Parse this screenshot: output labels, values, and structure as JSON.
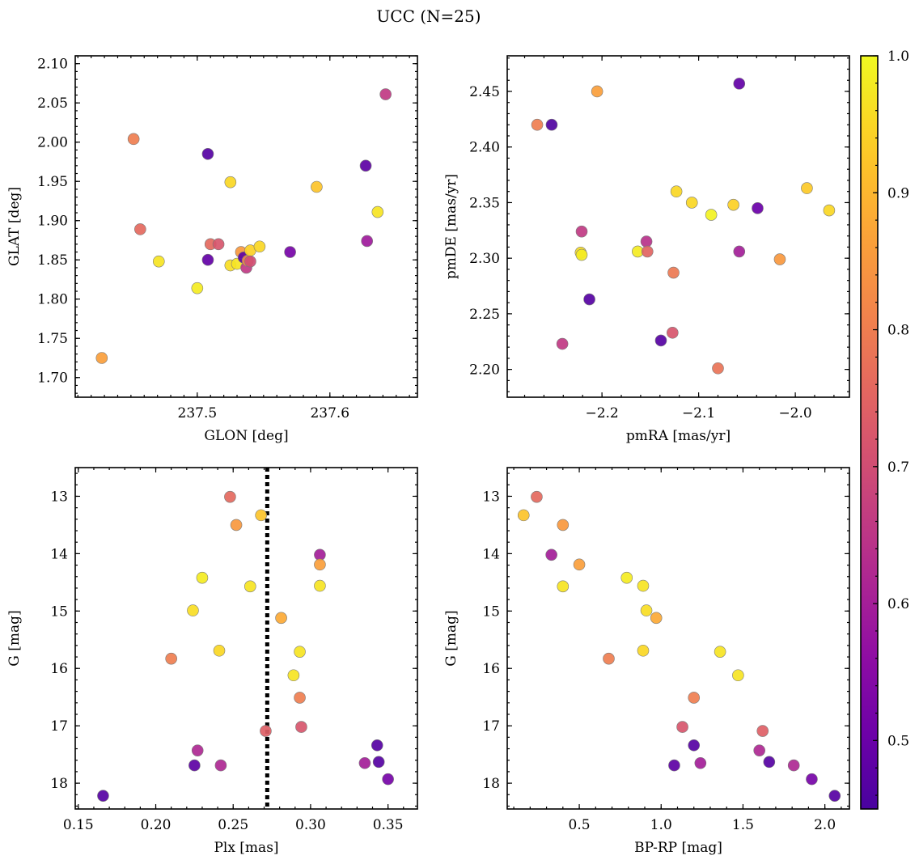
{
  "title": "UCC (N=25)",
  "chart_data": [
    {
      "type": "scatter",
      "xlabel": "GLON [deg]",
      "ylabel": "GLAT [deg]",
      "xlim": [
        237.408,
        237.666
      ],
      "ylim": [
        1.675,
        2.11
      ],
      "x_ticks": [
        237.5,
        237.6
      ],
      "x_tick_labels": [
        "237.5",
        "237.6"
      ],
      "x_minor_step": 0.01,
      "y_ticks": [
        1.7,
        1.75,
        1.8,
        1.85,
        1.9,
        1.95,
        2.0,
        2.05,
        2.1
      ],
      "y_tick_labels": [
        "1.70",
        "1.75",
        "1.80",
        "1.85",
        "1.90",
        "1.95",
        "2.00",
        "2.05",
        "2.10"
      ],
      "y_minor_step": 0.01,
      "invert_y": false,
      "x": [
        237.428,
        237.452,
        237.457,
        237.471,
        237.5,
        237.508,
        237.508,
        237.51,
        237.516,
        237.525,
        237.525,
        237.53,
        237.533,
        237.535,
        237.537,
        237.538,
        237.54,
        237.54,
        237.547,
        237.57,
        237.59,
        237.627,
        237.628,
        237.636,
        237.642
      ],
      "y": [
        1.725,
        2.004,
        1.889,
        1.848,
        1.814,
        1.985,
        1.85,
        1.87,
        1.87,
        1.949,
        1.843,
        1.845,
        1.86,
        1.853,
        1.84,
        1.849,
        1.862,
        1.848,
        1.867,
        1.86,
        1.943,
        1.97,
        1.874,
        1.911,
        2.061
      ],
      "c": [
        0.86,
        0.8,
        0.76,
        0.97,
        0.98,
        0.47,
        0.49,
        0.76,
        0.72,
        0.95,
        0.96,
        0.97,
        0.85,
        0.48,
        0.66,
        0.82,
        0.94,
        0.7,
        0.95,
        0.52,
        0.92,
        0.48,
        0.59,
        0.97,
        0.66
      ]
    },
    {
      "type": "scatter",
      "xlabel": "pmRA [mas/yr]",
      "ylabel": "pmDE [mas/yr]",
      "xlim": [
        -2.298,
        -1.944
      ],
      "ylim": [
        2.175,
        2.482
      ],
      "x_ticks": [
        -2.2,
        -2.1,
        -2.0
      ],
      "x_tick_labels": [
        "−2.2",
        "−2.1",
        "−2.0"
      ],
      "x_minor_step": 0.02,
      "y_ticks": [
        2.2,
        2.25,
        2.3,
        2.35,
        2.4,
        2.45
      ],
      "y_tick_labels": [
        "2.20",
        "2.25",
        "2.30",
        "2.35",
        "2.40",
        "2.45"
      ],
      "y_minor_step": 0.01,
      "invert_y": false,
      "x": [
        -2.267,
        -2.252,
        -2.205,
        -2.241,
        -2.221,
        -2.222,
        -2.221,
        -2.213,
        -2.163,
        -2.154,
        -2.153,
        -2.139,
        -2.126,
        -2.127,
        -2.123,
        -2.107,
        -2.087,
        -2.08,
        -2.064,
        -2.058,
        -2.058,
        -2.039,
        -2.016,
        -1.988,
        -1.965
      ],
      "y": [
        2.42,
        2.42,
        2.45,
        2.223,
        2.324,
        2.305,
        2.303,
        2.263,
        2.306,
        2.315,
        2.306,
        2.226,
        2.287,
        2.233,
        2.36,
        2.35,
        2.339,
        2.201,
        2.348,
        2.457,
        2.306,
        2.345,
        2.299,
        2.363,
        2.343
      ],
      "c": [
        0.8,
        0.46,
        0.86,
        0.66,
        0.66,
        0.96,
        0.98,
        0.47,
        0.98,
        0.64,
        0.75,
        0.47,
        0.79,
        0.72,
        0.95,
        0.95,
        0.99,
        0.78,
        0.94,
        0.49,
        0.6,
        0.5,
        0.85,
        0.93,
        0.95
      ]
    },
    {
      "type": "scatter",
      "xlabel": "Plx [mas]",
      "ylabel": "G [mag]",
      "xlim": [
        0.148,
        0.369
      ],
      "ylim": [
        12.5,
        18.45
      ],
      "x_ticks": [
        0.15,
        0.2,
        0.25,
        0.3,
        0.35
      ],
      "x_tick_labels": [
        "0.15",
        "0.20",
        "0.25",
        "0.30",
        "0.35"
      ],
      "x_minor_step": 0.01,
      "y_ticks": [
        13,
        14,
        15,
        16,
        17,
        18
      ],
      "y_tick_labels": [
        "13",
        "14",
        "15",
        "16",
        "17",
        "18"
      ],
      "y_minor_step": 0.2,
      "invert_y": true,
      "vline": 0.272,
      "x": [
        0.166,
        0.21,
        0.224,
        0.225,
        0.227,
        0.23,
        0.241,
        0.242,
        0.248,
        0.252,
        0.261,
        0.268,
        0.271,
        0.281,
        0.289,
        0.293,
        0.293,
        0.294,
        0.306,
        0.306,
        0.306,
        0.335,
        0.343,
        0.344,
        0.35
      ],
      "y": [
        18.22,
        15.83,
        14.99,
        17.69,
        17.43,
        14.42,
        15.69,
        17.69,
        13.01,
        13.5,
        14.57,
        13.33,
        17.09,
        15.12,
        16.12,
        15.71,
        16.51,
        17.02,
        14.02,
        14.19,
        14.56,
        17.65,
        17.34,
        17.63,
        17.93
      ],
      "c": [
        0.47,
        0.8,
        0.96,
        0.48,
        0.62,
        0.98,
        0.95,
        0.62,
        0.76,
        0.85,
        0.97,
        0.92,
        0.74,
        0.88,
        0.97,
        0.97,
        0.8,
        0.72,
        0.6,
        0.86,
        0.97,
        0.6,
        0.47,
        0.47,
        0.52
      ]
    },
    {
      "type": "scatter",
      "xlabel": "BP-RP [mag]",
      "ylabel": "G [mag]",
      "xlim": [
        0.06,
        2.15
      ],
      "ylim": [
        12.5,
        18.45
      ],
      "x_ticks": [
        0.5,
        1.0,
        1.5,
        2.0
      ],
      "x_tick_labels": [
        "0.5",
        "1.0",
        "1.5",
        "2.0"
      ],
      "x_minor_step": 0.1,
      "y_ticks": [
        13,
        14,
        15,
        16,
        17,
        18
      ],
      "y_tick_labels": [
        "13",
        "14",
        "15",
        "16",
        "17",
        "18"
      ],
      "y_minor_step": 0.2,
      "invert_y": true,
      "x": [
        0.16,
        0.24,
        0.33,
        0.4,
        0.4,
        0.5,
        0.68,
        0.79,
        0.89,
        0.89,
        0.91,
        0.97,
        1.08,
        1.13,
        1.2,
        1.2,
        1.24,
        1.36,
        1.47,
        1.6,
        1.62,
        1.66,
        1.81,
        1.92,
        2.06
      ],
      "y": [
        13.33,
        13.01,
        14.02,
        13.5,
        14.57,
        14.19,
        15.83,
        14.42,
        14.56,
        15.69,
        14.99,
        15.12,
        17.69,
        17.02,
        16.51,
        17.34,
        17.65,
        15.71,
        16.12,
        17.43,
        17.09,
        17.63,
        17.69,
        17.93,
        18.22
      ],
      "c": [
        0.92,
        0.76,
        0.6,
        0.85,
        0.97,
        0.86,
        0.8,
        0.98,
        0.97,
        0.95,
        0.96,
        0.88,
        0.48,
        0.72,
        0.8,
        0.47,
        0.6,
        0.97,
        0.97,
        0.62,
        0.74,
        0.47,
        0.62,
        0.52,
        0.47
      ]
    }
  ],
  "colorbar": {
    "cmap": "plasma",
    "vmin": 0.45,
    "vmax": 1.0,
    "ticks": [
      0.5,
      0.6,
      0.7,
      0.8,
      0.9,
      1.0
    ],
    "tick_labels": [
      "0.5",
      "0.6",
      "0.7",
      "0.8",
      "0.9",
      "1.0"
    ],
    "minor_step": 0.02
  }
}
